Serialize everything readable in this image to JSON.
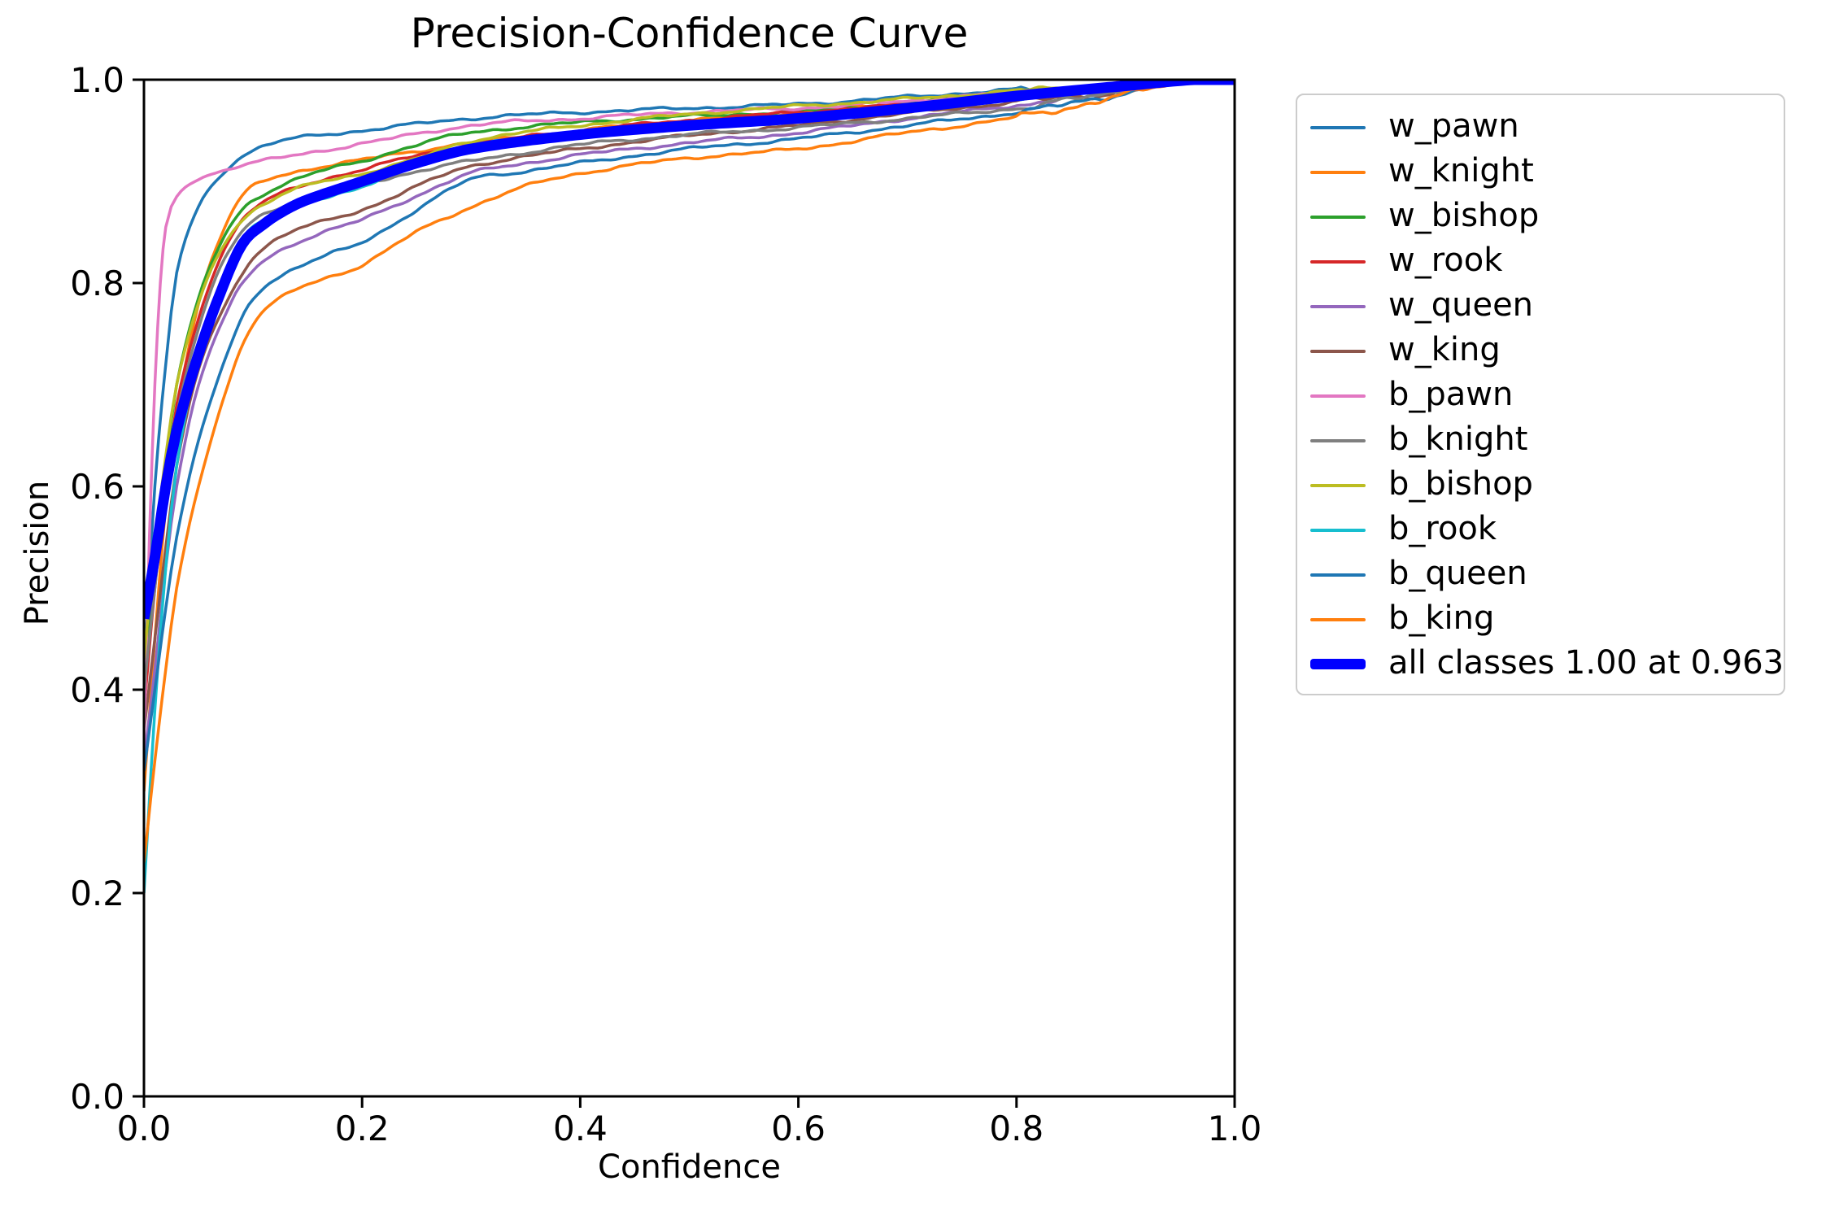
{
  "colors": {
    "background": "#ffffff",
    "text": "#000000",
    "spine": "#000000",
    "legend_border": "#cccccc",
    "all_classes_accent": "#0000ff"
  },
  "chart_data": {
    "type": "line",
    "title": "Precision-Confidence Curve",
    "xlabel": "Confidence",
    "ylabel": "Precision",
    "xlim": [
      0.0,
      1.0
    ],
    "ylim": [
      0.0,
      1.0
    ],
    "xticks": [
      "0.0",
      "0.2",
      "0.4",
      "0.6",
      "0.8",
      "1.0"
    ],
    "yticks": [
      "0.0",
      "0.2",
      "0.4",
      "0.6",
      "0.8",
      "1.0"
    ],
    "grid": false,
    "legend_position": "outside-right",
    "series": [
      {
        "name": "w_pawn",
        "label": "w_pawn",
        "color": "#1f77b4",
        "lw": 3.5,
        "points": [
          [
            0,
            0.42
          ],
          [
            0.01,
            0.6
          ],
          [
            0.02,
            0.72
          ],
          [
            0.03,
            0.81
          ],
          [
            0.05,
            0.875
          ],
          [
            0.07,
            0.905
          ],
          [
            0.09,
            0.925
          ],
          [
            0.12,
            0.938
          ],
          [
            0.15,
            0.944
          ],
          [
            0.2,
            0.95
          ],
          [
            0.3,
            0.962
          ],
          [
            0.4,
            0.968
          ],
          [
            0.5,
            0.972
          ],
          [
            0.6,
            0.976
          ],
          [
            0.7,
            0.983
          ],
          [
            0.8,
            0.99
          ],
          [
            0.9,
            0.994
          ],
          [
            0.945,
            1
          ],
          [
            1,
            1
          ]
        ]
      },
      {
        "name": "w_knight",
        "label": "w_knight",
        "color": "#ff7f0e",
        "lw": 3.5,
        "points": [
          [
            0,
            0.3
          ],
          [
            0.01,
            0.45
          ],
          [
            0.02,
            0.58
          ],
          [
            0.03,
            0.67
          ],
          [
            0.05,
            0.78
          ],
          [
            0.07,
            0.845
          ],
          [
            0.09,
            0.885
          ],
          [
            0.11,
            0.9
          ],
          [
            0.15,
            0.912
          ],
          [
            0.2,
            0.921
          ],
          [
            0.25,
            0.93
          ],
          [
            0.3,
            0.938
          ],
          [
            0.4,
            0.95
          ],
          [
            0.5,
            0.96
          ],
          [
            0.6,
            0.968
          ],
          [
            0.7,
            0.977
          ],
          [
            0.8,
            0.986
          ],
          [
            0.9,
            0.993
          ],
          [
            0.94,
            1
          ],
          [
            1,
            1
          ]
        ]
      },
      {
        "name": "w_bishop",
        "label": "w_bishop",
        "color": "#2ca02c",
        "lw": 3.5,
        "points": [
          [
            0,
            0.4
          ],
          [
            0.01,
            0.52
          ],
          [
            0.02,
            0.62
          ],
          [
            0.03,
            0.7
          ],
          [
            0.05,
            0.785
          ],
          [
            0.07,
            0.838
          ],
          [
            0.09,
            0.872
          ],
          [
            0.11,
            0.888
          ],
          [
            0.15,
            0.906
          ],
          [
            0.2,
            0.92
          ],
          [
            0.25,
            0.936
          ],
          [
            0.3,
            0.948
          ],
          [
            0.4,
            0.958
          ],
          [
            0.5,
            0.964
          ],
          [
            0.6,
            0.969
          ],
          [
            0.7,
            0.977
          ],
          [
            0.8,
            0.986
          ],
          [
            0.9,
            0.992
          ],
          [
            0.925,
            1
          ],
          [
            1,
            1
          ]
        ]
      },
      {
        "name": "w_rook",
        "label": "w_rook",
        "color": "#d62728",
        "lw": 3.5,
        "points": [
          [
            0,
            0.38
          ],
          [
            0.01,
            0.5
          ],
          [
            0.02,
            0.6
          ],
          [
            0.03,
            0.68
          ],
          [
            0.05,
            0.765
          ],
          [
            0.07,
            0.825
          ],
          [
            0.09,
            0.862
          ],
          [
            0.11,
            0.88
          ],
          [
            0.15,
            0.897
          ],
          [
            0.2,
            0.912
          ],
          [
            0.25,
            0.925
          ],
          [
            0.3,
            0.936
          ],
          [
            0.4,
            0.95
          ],
          [
            0.5,
            0.96
          ],
          [
            0.6,
            0.968
          ],
          [
            0.7,
            0.976
          ],
          [
            0.8,
            0.985
          ],
          [
            0.88,
            0.99
          ],
          [
            0.92,
            1
          ],
          [
            1,
            1
          ]
        ]
      },
      {
        "name": "w_queen",
        "label": "w_queen",
        "color": "#9467bd",
        "lw": 3.5,
        "points": [
          [
            0,
            0.33
          ],
          [
            0.01,
            0.42
          ],
          [
            0.02,
            0.52
          ],
          [
            0.03,
            0.6
          ],
          [
            0.05,
            0.7
          ],
          [
            0.08,
            0.78
          ],
          [
            0.1,
            0.812
          ],
          [
            0.13,
            0.835
          ],
          [
            0.17,
            0.852
          ],
          [
            0.2,
            0.862
          ],
          [
            0.25,
            0.886
          ],
          [
            0.3,
            0.908
          ],
          [
            0.35,
            0.918
          ],
          [
            0.4,
            0.926
          ],
          [
            0.5,
            0.938
          ],
          [
            0.6,
            0.948
          ],
          [
            0.7,
            0.962
          ],
          [
            0.8,
            0.975
          ],
          [
            0.9,
            0.99
          ],
          [
            0.945,
            1
          ],
          [
            1,
            1
          ]
        ]
      },
      {
        "name": "w_king",
        "label": "w_king",
        "color": "#8c564b",
        "lw": 3.5,
        "points": [
          [
            0,
            0.36
          ],
          [
            0.01,
            0.45
          ],
          [
            0.02,
            0.54
          ],
          [
            0.03,
            0.62
          ],
          [
            0.05,
            0.715
          ],
          [
            0.08,
            0.79
          ],
          [
            0.1,
            0.825
          ],
          [
            0.13,
            0.848
          ],
          [
            0.17,
            0.862
          ],
          [
            0.2,
            0.872
          ],
          [
            0.25,
            0.895
          ],
          [
            0.3,
            0.915
          ],
          [
            0.4,
            0.932
          ],
          [
            0.5,
            0.945
          ],
          [
            0.6,
            0.955
          ],
          [
            0.7,
            0.967
          ],
          [
            0.8,
            0.978
          ],
          [
            0.87,
            0.985
          ],
          [
            0.9,
            0.99
          ],
          [
            0.935,
            1
          ],
          [
            1,
            1
          ]
        ]
      },
      {
        "name": "b_pawn",
        "label": "b_pawn",
        "color": "#e377c2",
        "lw": 3.5,
        "points": [
          [
            0,
            0.35
          ],
          [
            0.005,
            0.55
          ],
          [
            0.01,
            0.7
          ],
          [
            0.015,
            0.8
          ],
          [
            0.02,
            0.855
          ],
          [
            0.03,
            0.885
          ],
          [
            0.05,
            0.902
          ],
          [
            0.08,
            0.913
          ],
          [
            0.1,
            0.918
          ],
          [
            0.15,
            0.928
          ],
          [
            0.2,
            0.937
          ],
          [
            0.3,
            0.955
          ],
          [
            0.4,
            0.962
          ],
          [
            0.5,
            0.968
          ],
          [
            0.6,
            0.972
          ],
          [
            0.7,
            0.979
          ],
          [
            0.8,
            0.988
          ],
          [
            0.9,
            0.994
          ],
          [
            0.94,
            1
          ],
          [
            1,
            1
          ]
        ]
      },
      {
        "name": "b_knight",
        "label": "b_knight",
        "color": "#7f7f7f",
        "lw": 3.5,
        "points": [
          [
            0,
            0.4
          ],
          [
            0.01,
            0.5
          ],
          [
            0.02,
            0.6
          ],
          [
            0.03,
            0.67
          ],
          [
            0.05,
            0.755
          ],
          [
            0.07,
            0.815
          ],
          [
            0.09,
            0.85
          ],
          [
            0.11,
            0.868
          ],
          [
            0.15,
            0.884
          ],
          [
            0.2,
            0.897
          ],
          [
            0.25,
            0.91
          ],
          [
            0.3,
            0.92
          ],
          [
            0.4,
            0.936
          ],
          [
            0.5,
            0.946
          ],
          [
            0.6,
            0.953
          ],
          [
            0.7,
            0.962
          ],
          [
            0.8,
            0.972
          ],
          [
            0.85,
            0.98
          ],
          [
            0.9,
            0.99
          ],
          [
            0.95,
            1
          ],
          [
            1,
            1
          ]
        ]
      },
      {
        "name": "b_bishop",
        "label": "b_bishop",
        "color": "#bcbd22",
        "lw": 3.5,
        "points": [
          [
            0,
            0.43
          ],
          [
            0.01,
            0.54
          ],
          [
            0.02,
            0.63
          ],
          [
            0.03,
            0.7
          ],
          [
            0.05,
            0.78
          ],
          [
            0.07,
            0.832
          ],
          [
            0.09,
            0.862
          ],
          [
            0.11,
            0.878
          ],
          [
            0.15,
            0.896
          ],
          [
            0.2,
            0.908
          ],
          [
            0.25,
            0.922
          ],
          [
            0.3,
            0.94
          ],
          [
            0.4,
            0.955
          ],
          [
            0.5,
            0.966
          ],
          [
            0.6,
            0.974
          ],
          [
            0.7,
            0.981
          ],
          [
            0.8,
            0.989
          ],
          [
            0.9,
            0.995
          ],
          [
            0.93,
            1
          ],
          [
            1,
            1
          ]
        ]
      },
      {
        "name": "b_rook",
        "label": "b_rook",
        "color": "#17becf",
        "lw": 3.5,
        "points": [
          [
            0,
            0.2
          ],
          [
            0.01,
            0.38
          ],
          [
            0.02,
            0.52
          ],
          [
            0.03,
            0.62
          ],
          [
            0.05,
            0.73
          ],
          [
            0.07,
            0.8
          ],
          [
            0.09,
            0.842
          ],
          [
            0.11,
            0.862
          ],
          [
            0.15,
            0.88
          ],
          [
            0.2,
            0.894
          ],
          [
            0.25,
            0.916
          ],
          [
            0.3,
            0.934
          ],
          [
            0.4,
            0.948
          ],
          [
            0.5,
            0.957
          ],
          [
            0.6,
            0.963
          ],
          [
            0.7,
            0.972
          ],
          [
            0.8,
            0.983
          ],
          [
            0.9,
            0.993
          ],
          [
            0.94,
            1
          ],
          [
            1,
            1
          ]
        ]
      },
      {
        "name": "b_queen",
        "label": "b_queen",
        "color": "#1f77b4",
        "lw": 3.5,
        "points": [
          [
            0,
            0.32
          ],
          [
            0.01,
            0.4
          ],
          [
            0.02,
            0.48
          ],
          [
            0.03,
            0.55
          ],
          [
            0.05,
            0.645
          ],
          [
            0.08,
            0.74
          ],
          [
            0.1,
            0.785
          ],
          [
            0.13,
            0.81
          ],
          [
            0.17,
            0.828
          ],
          [
            0.2,
            0.84
          ],
          [
            0.25,
            0.872
          ],
          [
            0.3,
            0.902
          ],
          [
            0.35,
            0.91
          ],
          [
            0.4,
            0.918
          ],
          [
            0.5,
            0.932
          ],
          [
            0.6,
            0.942
          ],
          [
            0.7,
            0.955
          ],
          [
            0.8,
            0.968
          ],
          [
            0.85,
            0.976
          ],
          [
            0.9,
            0.988
          ],
          [
            0.955,
            1
          ],
          [
            1,
            1
          ]
        ]
      },
      {
        "name": "b_king",
        "label": "b_king",
        "color": "#ff7f0e",
        "lw": 3.5,
        "points": [
          [
            0,
            0.23
          ],
          [
            0.01,
            0.33
          ],
          [
            0.02,
            0.42
          ],
          [
            0.03,
            0.5
          ],
          [
            0.05,
            0.6
          ],
          [
            0.08,
            0.71
          ],
          [
            0.1,
            0.76
          ],
          [
            0.13,
            0.788
          ],
          [
            0.17,
            0.806
          ],
          [
            0.2,
            0.818
          ],
          [
            0.25,
            0.85
          ],
          [
            0.3,
            0.875
          ],
          [
            0.35,
            0.895
          ],
          [
            0.4,
            0.908
          ],
          [
            0.5,
            0.923
          ],
          [
            0.6,
            0.932
          ],
          [
            0.7,
            0.948
          ],
          [
            0.8,
            0.963
          ],
          [
            0.9,
            0.985
          ],
          [
            0.96,
            1
          ],
          [
            1,
            1
          ]
        ]
      },
      {
        "name": "all_classes",
        "label": "all classes 1.00 at 0.963",
        "color": "#0000ff",
        "lw": 13,
        "points": [
          [
            0,
            0.47
          ],
          [
            0.01,
            0.53
          ],
          [
            0.02,
            0.6
          ],
          [
            0.03,
            0.655
          ],
          [
            0.05,
            0.73
          ],
          [
            0.07,
            0.79
          ],
          [
            0.09,
            0.838
          ],
          [
            0.11,
            0.858
          ],
          [
            0.13,
            0.872
          ],
          [
            0.15,
            0.882
          ],
          [
            0.2,
            0.9
          ],
          [
            0.25,
            0.918
          ],
          [
            0.3,
            0.932
          ],
          [
            0.4,
            0.946
          ],
          [
            0.5,
            0.955
          ],
          [
            0.6,
            0.962
          ],
          [
            0.7,
            0.972
          ],
          [
            0.8,
            0.984
          ],
          [
            0.9,
            0.994
          ],
          [
            0.963,
            1
          ],
          [
            1,
            1
          ]
        ]
      }
    ]
  }
}
